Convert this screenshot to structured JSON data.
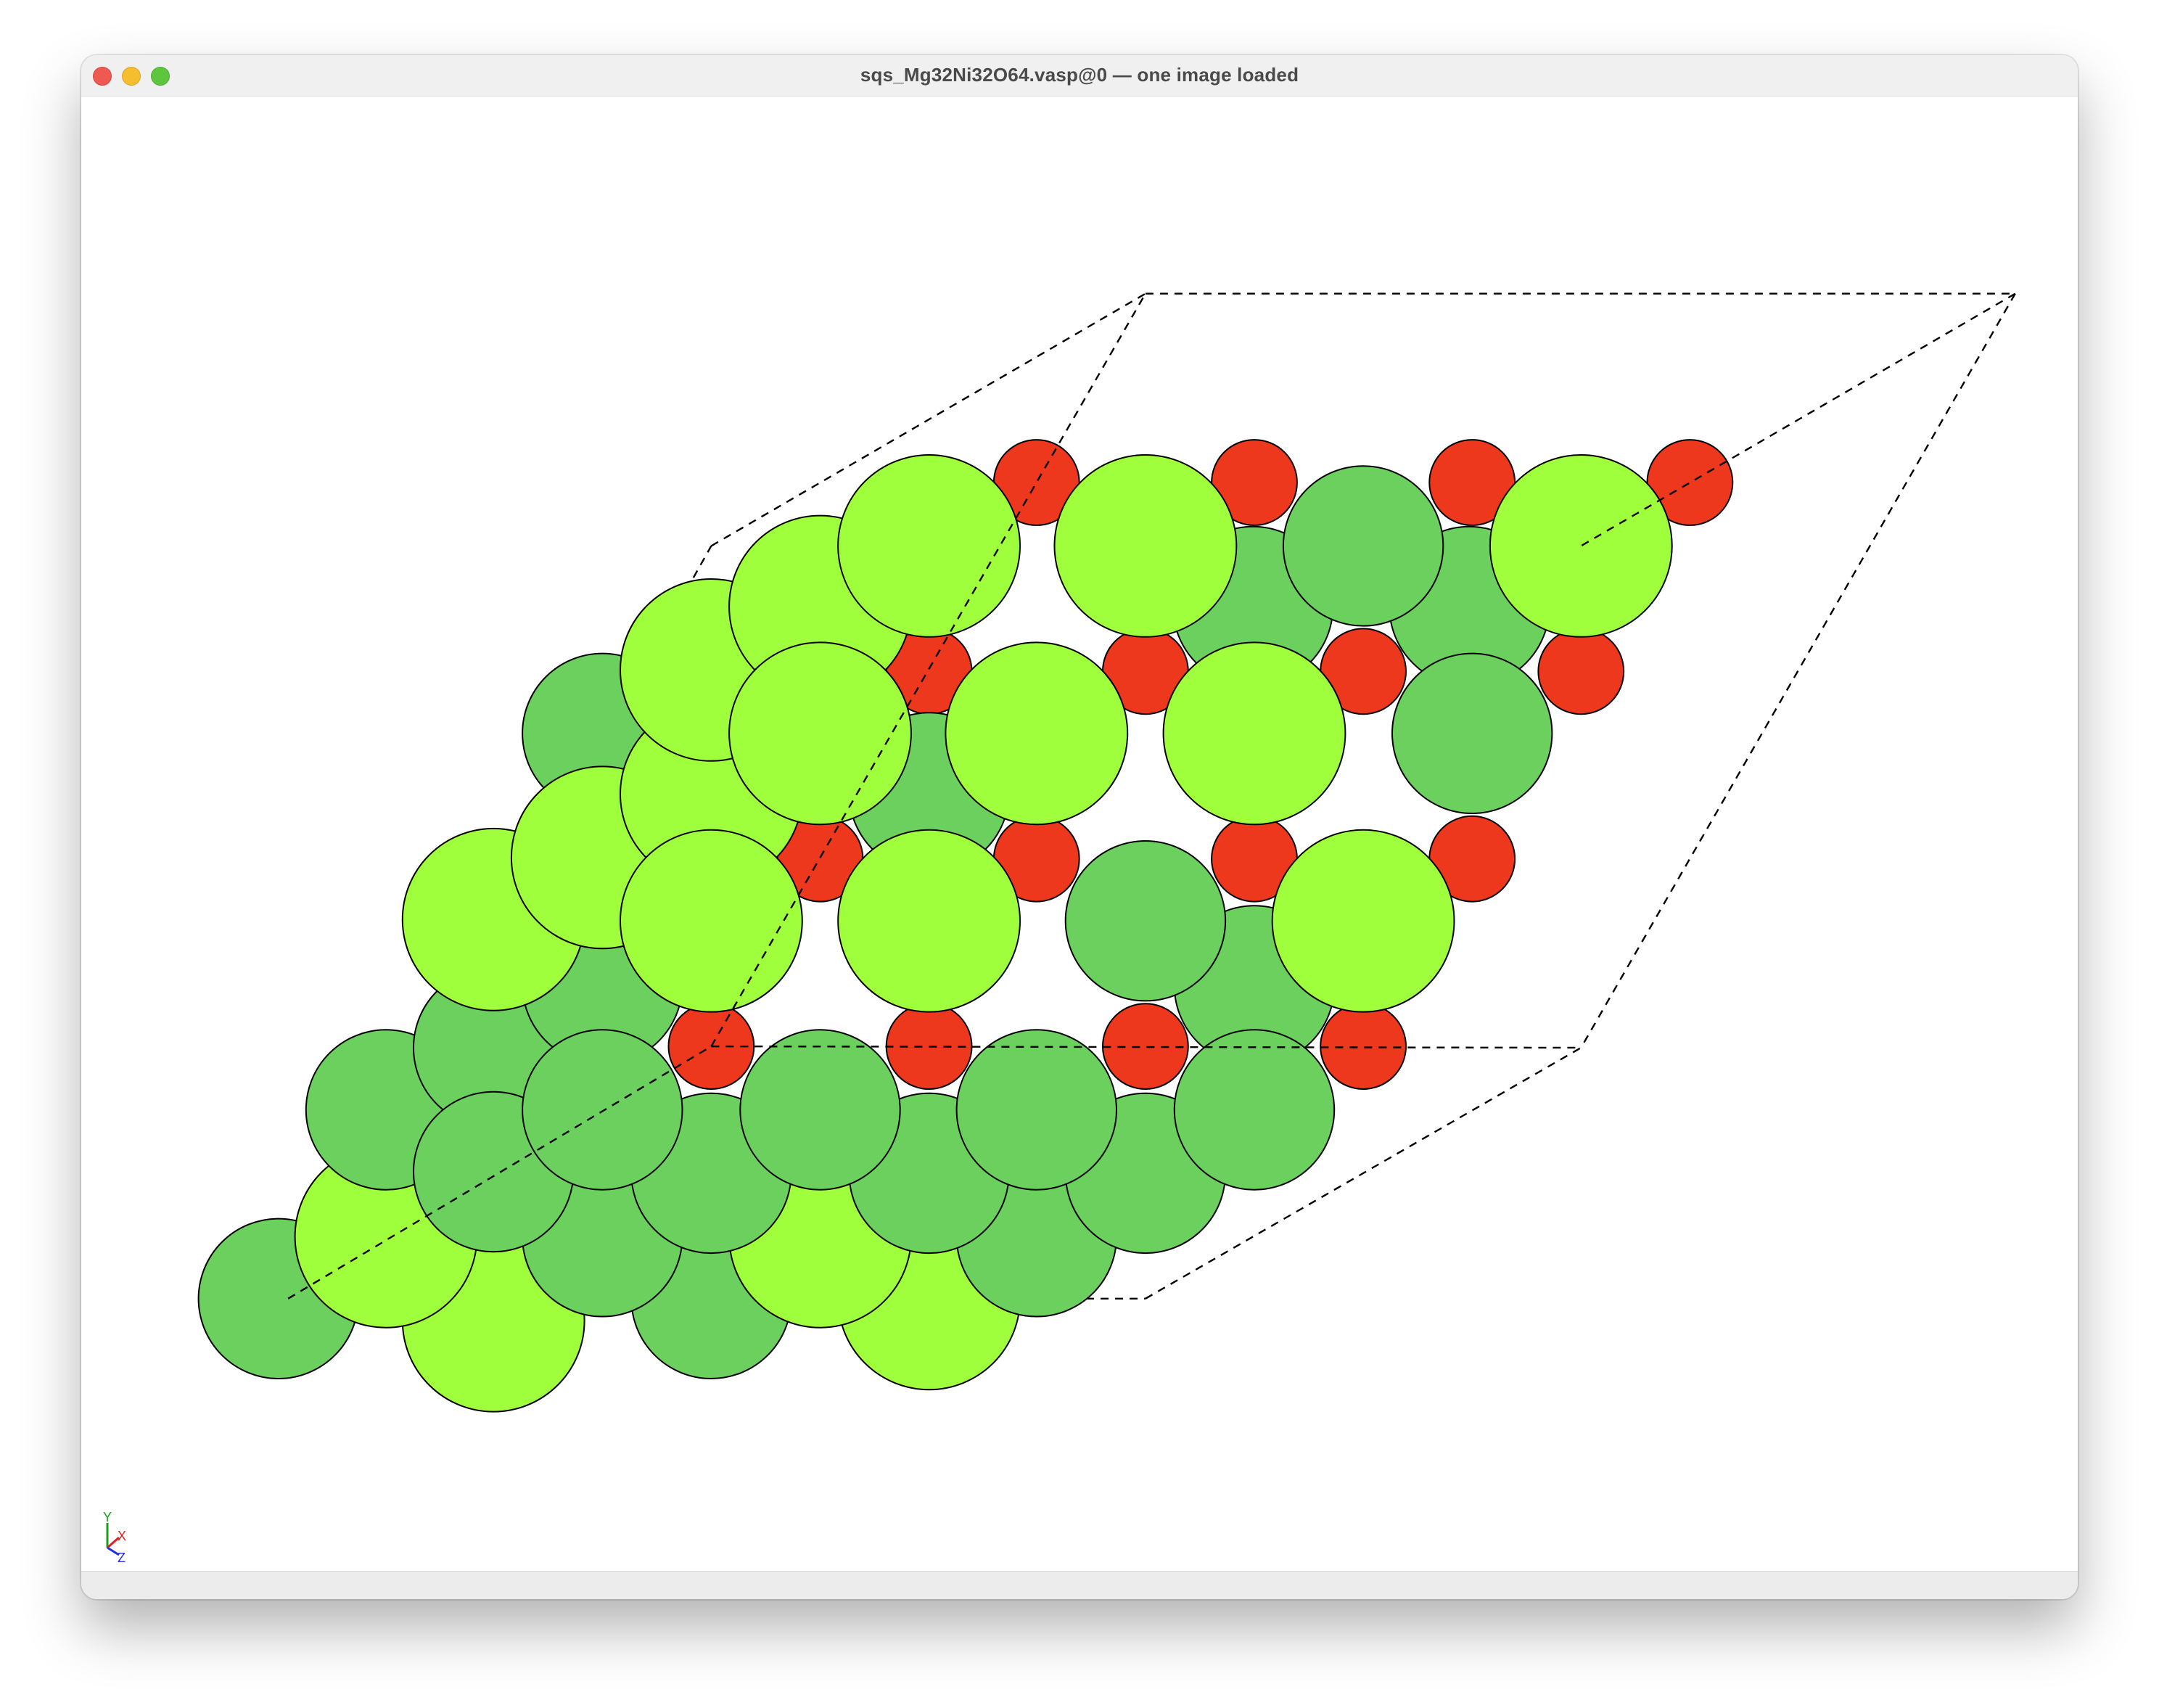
{
  "window": {
    "title": "sqs_Mg32Ni32O64.vasp@0 — one image loaded"
  },
  "colors": {
    "element_a": "#a0ff3c",
    "element_b": "#6bd05d",
    "oxygen": "#ee381d",
    "outline": "#000000",
    "axis_x": "#e02020",
    "axis_y": "#18a018",
    "axis_z": "#2030e0"
  },
  "axes": {
    "x_label": "X",
    "y_label": "Y",
    "z_label": "Z"
  },
  "icons": {
    "close": "close-icon",
    "minimize": "minimize-icon",
    "zoom": "zoom-icon",
    "axes": "axes-triad-icon"
  }
}
